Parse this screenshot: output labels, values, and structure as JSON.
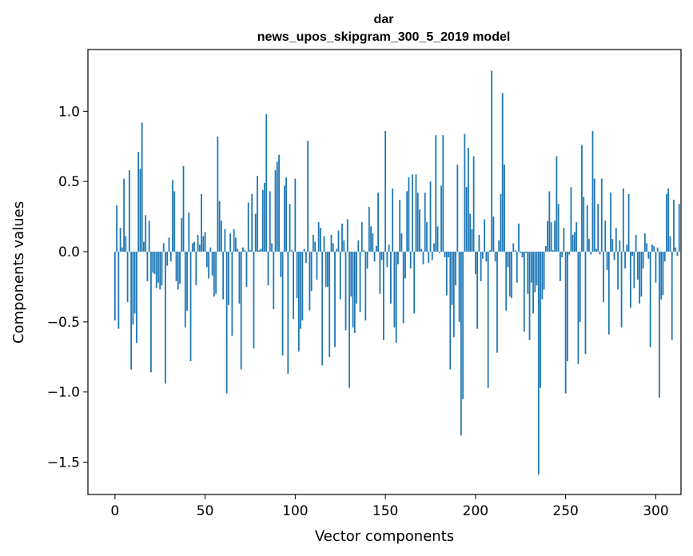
{
  "chart_data": {
    "type": "bar",
    "title": "dar",
    "subtitle": "news_upos_skipgram_300_5_2019 model",
    "xlabel": "Vector components",
    "ylabel": "Components values",
    "xlim": [
      -15,
      314
    ],
    "ylim": [
      -1.73,
      1.44
    ],
    "xticks": [
      0,
      50,
      100,
      150,
      200,
      250,
      300
    ],
    "xtick_labels": [
      "0",
      "50",
      "100",
      "150",
      "200",
      "250",
      "300"
    ],
    "yticks": [
      -1.5,
      -1.0,
      -0.5,
      0.0,
      0.5,
      1.0
    ],
    "ytick_labels": [
      "−1.5",
      "−1.0",
      "−0.5",
      "0.0",
      "0.5",
      "1.0"
    ],
    "bar_color": "#1f77b4",
    "values": [
      -0.49,
      0.33,
      -0.55,
      0.17,
      0.03,
      0.52,
      0.11,
      -0.36,
      0.58,
      -0.84,
      -0.52,
      -0.44,
      -0.65,
      0.71,
      0.59,
      0.92,
      0.07,
      0.26,
      -0.21,
      0.22,
      -0.86,
      -0.15,
      -0.16,
      -0.26,
      -0.22,
      -0.27,
      -0.24,
      0.06,
      -0.94,
      -0.1,
      0.1,
      -0.07,
      0.51,
      0.43,
      -0.21,
      -0.27,
      -0.23,
      0.24,
      0.61,
      -0.54,
      -0.42,
      0.28,
      -0.78,
      0.06,
      0.07,
      -0.24,
      0.12,
      0.05,
      0.41,
      0.11,
      0.14,
      -0.11,
      -0.19,
      0.03,
      -0.17,
      -0.32,
      -0.3,
      0.82,
      0.36,
      0.22,
      -0.34,
      0.16,
      -1.01,
      -0.38,
      0.13,
      -0.6,
      0.16,
      0.1,
      0.02,
      -0.37,
      -0.84,
      0.03,
      0.01,
      -0.25,
      0.35,
      0.01,
      0.41,
      -0.69,
      0.27,
      0.54,
      0.01,
      0.02,
      0.44,
      0.49,
      0.98,
      -0.24,
      0.43,
      0.06,
      -0.41,
      0.58,
      0.64,
      0.69,
      -0.18,
      -0.74,
      0.47,
      0.53,
      -0.87,
      0.34,
      0.01,
      -0.48,
      0.52,
      -0.33,
      -0.71,
      -0.55,
      -0.49,
      0.02,
      -0.08,
      0.79,
      -0.42,
      -0.28,
      0.12,
      0.07,
      -0.2,
      0.21,
      0.17,
      -0.81,
      0.11,
      -0.25,
      -0.25,
      -0.75,
      0.12,
      0.06,
      -0.68,
      0.02,
      0.15,
      -0.34,
      0.2,
      0.08,
      -0.56,
      0.23,
      -0.97,
      -0.32,
      -0.54,
      -0.58,
      -0.37,
      0.08,
      -0.43,
      0.21,
      0.01,
      -0.49,
      -0.12,
      0.32,
      0.18,
      0.13,
      -0.07,
      0.04,
      0.42,
      -0.3,
      -0.06,
      -0.63,
      0.86,
      -0.11,
      0.05,
      -0.37,
      0.45,
      -0.54,
      -0.65,
      -0.09,
      0.37,
      0.13,
      -0.51,
      -0.19,
      0.43,
      0.53,
      -0.12,
      0.55,
      -0.44,
      0.55,
      0.42,
      0.3,
      0.02,
      -0.09,
      0.42,
      0.21,
      -0.08,
      0.5,
      -0.06,
      0.06,
      0.83,
      0.18,
      -0.01,
      0.47,
      0.83,
      -0.04,
      -0.31,
      -0.04,
      -0.84,
      -0.38,
      -0.61,
      -0.24,
      0.62,
      -0.5,
      -1.31,
      -1.05,
      0.84,
      0.46,
      0.74,
      0.27,
      0.16,
      0.68,
      -0.16,
      -0.55,
      0.12,
      -0.21,
      -0.05,
      0.23,
      -0.07,
      -0.97,
      0.01,
      1.29,
      0.25,
      -0.07,
      -0.72,
      0.08,
      0.41,
      1.13,
      0.62,
      -0.42,
      -0.11,
      -0.32,
      -0.33,
      0.06,
      0.01,
      -0.22,
      0.2,
      -0.01,
      -0.04,
      -0.57,
      -0.01,
      -0.3,
      -0.63,
      -0.22,
      -0.44,
      -0.29,
      -0.24,
      -1.59,
      -0.97,
      -0.34,
      -0.27,
      0.04,
      0.22,
      0.43,
      0.21,
      0.01,
      0.22,
      0.68,
      0.34,
      -0.21,
      -0.04,
      0.17,
      -1.01,
      -0.78,
      -0.02,
      0.46,
      0.12,
      0.14,
      0.21,
      -0.8,
      -0.5,
      0.76,
      0.39,
      -0.73,
      0.33,
      0.09,
      -0.02,
      0.86,
      0.52,
      0.02,
      0.34,
      -0.02,
      0.52,
      -0.36,
      0.22,
      -0.13,
      -0.59,
      0.42,
      0.09,
      -0.06,
      0.17,
      -0.27,
      0.08,
      -0.54,
      0.45,
      -0.12,
      0.05,
      0.41,
      -0.4,
      -0.03,
      -0.26,
      0.12,
      -0.2,
      -0.37,
      -0.32,
      -0.12,
      0.13,
      0.06,
      -0.05,
      -0.68,
      0.05,
      0.04,
      -0.22,
      0.03,
      -1.04,
      -0.34,
      -0.31,
      -0.07,
      0.41,
      0.45,
      0.11,
      -0.63,
      0.37,
      0.03,
      -0.03,
      0.34
    ]
  }
}
